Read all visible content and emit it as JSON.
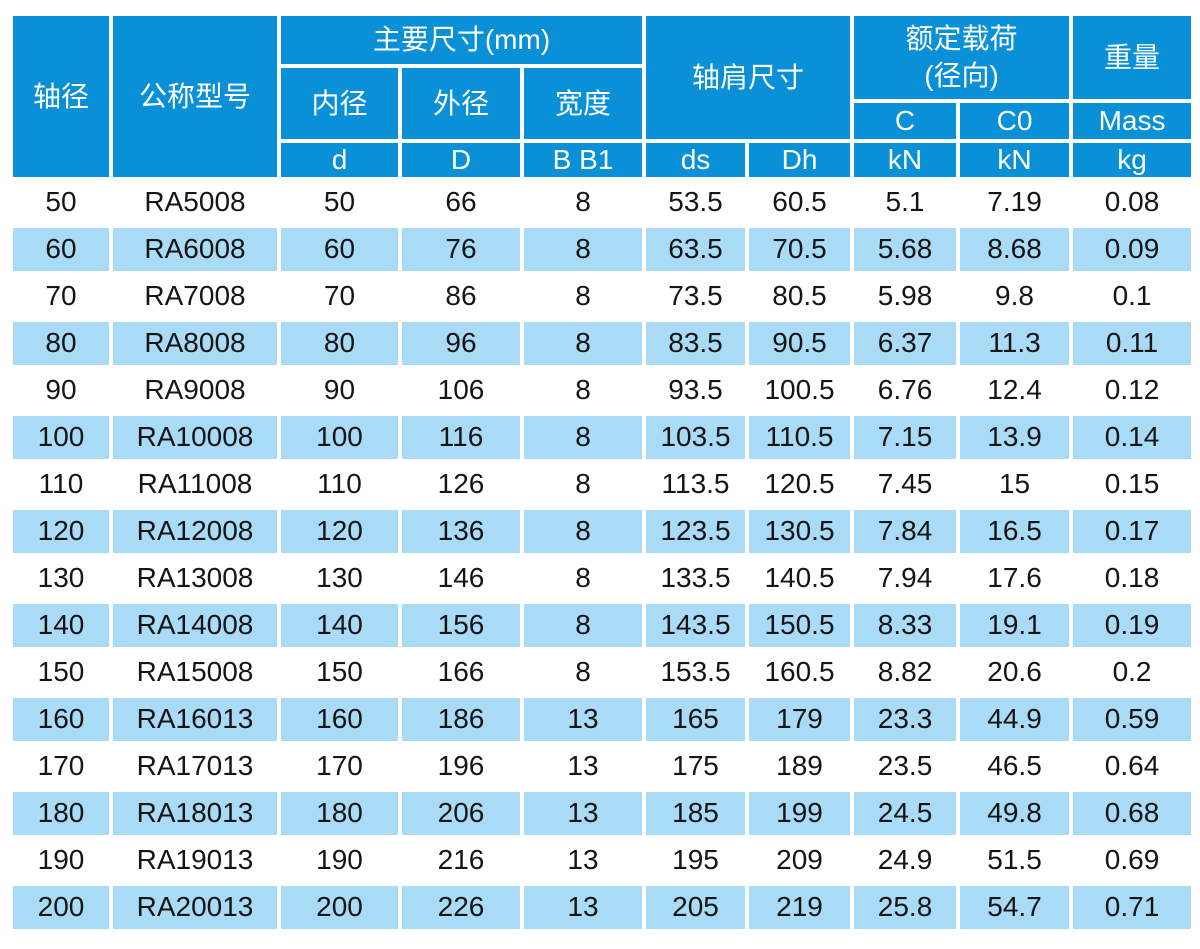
{
  "colors": {
    "header_blue": "#0a90d6",
    "row_alt_blue": "#a9daf6",
    "header_text": "#ffffff",
    "body_text": "#151515",
    "grid_line": "#ffffff"
  },
  "table": {
    "header": {
      "shaft_diameter": "轴径",
      "model": "公称型号",
      "main_dimensions": "主要尺寸(mm)",
      "inner_diameter": "内径",
      "outer_diameter": "外径",
      "width_label": "宽度",
      "d": "d",
      "D": "D",
      "b_b1": "B B1",
      "shoulder": "轴肩尺寸",
      "ds": "ds",
      "dh": "Dh",
      "rated_load_line1": "额定载荷",
      "rated_load_line2": "(径向)",
      "c": "C",
      "c0": "C0",
      "kn_c": "kN",
      "kn_c0": "kN",
      "weight": "重量",
      "mass": "Mass",
      "kg": "kg"
    },
    "columns": [
      "shaft-diameter",
      "model",
      "d",
      "D",
      "B-B1",
      "ds",
      "Dh",
      "C-kN",
      "C0-kN",
      "mass-kg"
    ],
    "rows": [
      [
        "50",
        "RA5008",
        "50",
        "66",
        "8",
        "53.5",
        "60.5",
        "5.1",
        "7.19",
        "0.08"
      ],
      [
        "60",
        "RA6008",
        "60",
        "76",
        "8",
        "63.5",
        "70.5",
        "5.68",
        "8.68",
        "0.09"
      ],
      [
        "70",
        "RA7008",
        "70",
        "86",
        "8",
        "73.5",
        "80.5",
        "5.98",
        "9.8",
        "0.1"
      ],
      [
        "80",
        "RA8008",
        "80",
        "96",
        "8",
        "83.5",
        "90.5",
        "6.37",
        "11.3",
        "0.11"
      ],
      [
        "90",
        "RA9008",
        "90",
        "106",
        "8",
        "93.5",
        "100.5",
        "6.76",
        "12.4",
        "0.12"
      ],
      [
        "100",
        "RA10008",
        "100",
        "116",
        "8",
        "103.5",
        "110.5",
        "7.15",
        "13.9",
        "0.14"
      ],
      [
        "110",
        "RA11008",
        "110",
        "126",
        "8",
        "113.5",
        "120.5",
        "7.45",
        "15",
        "0.15"
      ],
      [
        "120",
        "RA12008",
        "120",
        "136",
        "8",
        "123.5",
        "130.5",
        "7.84",
        "16.5",
        "0.17"
      ],
      [
        "130",
        "RA13008",
        "130",
        "146",
        "8",
        "133.5",
        "140.5",
        "7.94",
        "17.6",
        "0.18"
      ],
      [
        "140",
        "RA14008",
        "140",
        "156",
        "8",
        "143.5",
        "150.5",
        "8.33",
        "19.1",
        "0.19"
      ],
      [
        "150",
        "RA15008",
        "150",
        "166",
        "8",
        "153.5",
        "160.5",
        "8.82",
        "20.6",
        "0.2"
      ],
      [
        "160",
        "RA16013",
        "160",
        "186",
        "13",
        "165",
        "179",
        "23.3",
        "44.9",
        "0.59"
      ],
      [
        "170",
        "RA17013",
        "170",
        "196",
        "13",
        "175",
        "189",
        "23.5",
        "46.5",
        "0.64"
      ],
      [
        "180",
        "RA18013",
        "180",
        "206",
        "13",
        "185",
        "199",
        "24.5",
        "49.8",
        "0.68"
      ],
      [
        "190",
        "RA19013",
        "190",
        "216",
        "13",
        "195",
        "209",
        "24.9",
        "51.5",
        "0.69"
      ],
      [
        "200",
        "RA20013",
        "200",
        "226",
        "13",
        "205",
        "219",
        "25.8",
        "54.7",
        "0.71"
      ]
    ]
  }
}
